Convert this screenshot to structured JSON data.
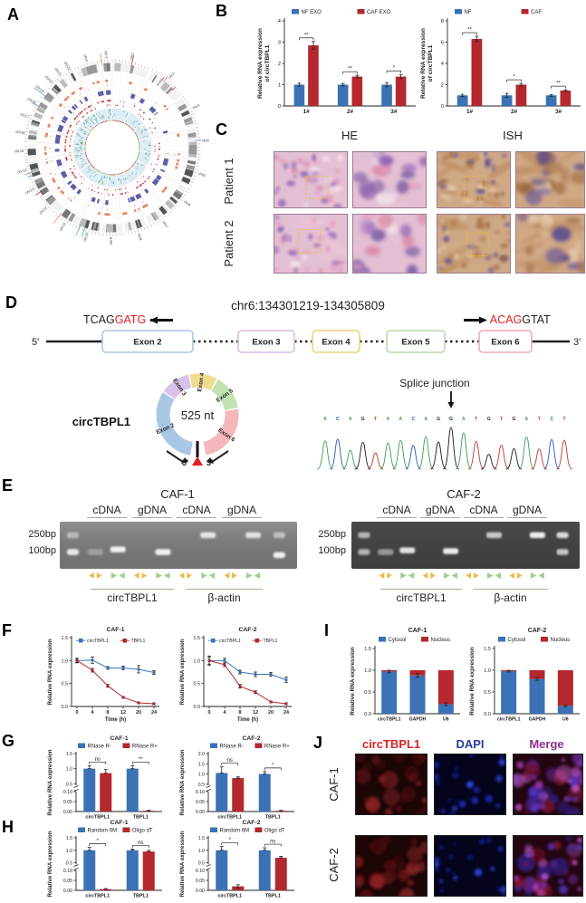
{
  "panel_labels": {
    "A": "A",
    "B": "B",
    "C": "C",
    "D": "D",
    "E": "E",
    "F": "F",
    "G": "G",
    "H": "H",
    "I": "I",
    "J": "J"
  },
  "colors": {
    "series_blue": "#3a72b5",
    "series_red": "#b4282e",
    "accent_red": "#e02020",
    "j_red": "#d42525",
    "j_blue": "#2b3a9e",
    "j_purple": "#8b2f8f",
    "primer_divergent": "#f0b84a",
    "primer_convergent": "#9ed08a"
  },
  "panelA": {
    "chromosomes": [
      {
        "name": "chr1",
        "size": 248
      },
      {
        "name": "chr2",
        "size": 242
      },
      {
        "name": "chr3",
        "size": 198
      },
      {
        "name": "chr4",
        "size": 190
      },
      {
        "name": "chr5",
        "size": 181
      },
      {
        "name": "chr6",
        "size": 171
      },
      {
        "name": "chr7",
        "size": 159
      },
      {
        "name": "chr8",
        "size": 145
      },
      {
        "name": "chr9",
        "size": 138
      },
      {
        "name": "chr10",
        "size": 134
      },
      {
        "name": "chr11",
        "size": 135
      },
      {
        "name": "chr12",
        "size": 133
      },
      {
        "name": "chr13",
        "size": 114
      },
      {
        "name": "chr14",
        "size": 107
      },
      {
        "name": "chr15",
        "size": 102
      },
      {
        "name": "chr16",
        "size": 90
      },
      {
        "name": "chr17",
        "size": 83
      },
      {
        "name": "chr18",
        "size": 80
      },
      {
        "name": "chr19",
        "size": 59
      },
      {
        "name": "chr20",
        "size": 64
      },
      {
        "name": "chr21",
        "size": 47
      },
      {
        "name": "chr22",
        "size": 51
      },
      {
        "name": "chrX",
        "size": 155
      },
      {
        "name": "chrY",
        "size": 57
      }
    ],
    "track_colors": {
      "orange": "#e8825a",
      "purple": "#5c5fa8",
      "red": "#c23b33",
      "lightblue_band": "#ddedf5",
      "teal": "#2a9d8f",
      "blue": "#4a90c2",
      "green": "#7ab648"
    }
  },
  "chart_data": {
    "b_left": {
      "type": "bar",
      "title": "",
      "ylabel": [
        "Relative RNA expression",
        "of circTBPL1"
      ],
      "categories": [
        "1#",
        "2#",
        "3#"
      ],
      "ylim": [
        0,
        4
      ],
      "yticks": [
        0,
        1,
        2,
        3,
        4
      ],
      "series": [
        {
          "name": "NF EXO",
          "color": "#3a72b5",
          "values": [
            1.0,
            1.0,
            1.0
          ],
          "errors": [
            0.07,
            0.06,
            0.1
          ]
        },
        {
          "name": "CAF EXO",
          "color": "#b4282e",
          "values": [
            2.85,
            1.38,
            1.38
          ],
          "errors": [
            0.18,
            0.06,
            0.1
          ]
        }
      ],
      "sig": [
        "**",
        "**",
        "*"
      ]
    },
    "b_right": {
      "type": "bar",
      "title": "",
      "ylabel": [
        "Relative RNA expression",
        "of circTBPL1"
      ],
      "categories": [
        "1#",
        "2#",
        "3#"
      ],
      "ylim": [
        0,
        8
      ],
      "yticks": [
        0,
        2,
        4,
        6,
        8
      ],
      "series": [
        {
          "name": "NF",
          "color": "#3a72b5",
          "values": [
            1.0,
            1.0,
            1.0
          ],
          "errors": [
            0.1,
            0.18,
            0.08
          ]
        },
        {
          "name": "CAF",
          "color": "#b4282e",
          "values": [
            6.3,
            2.0,
            1.45
          ],
          "errors": [
            0.25,
            0.12,
            0.07
          ]
        }
      ],
      "sig": [
        "**",
        "*",
        "**"
      ]
    },
    "f_caf1": {
      "type": "line",
      "title": "CAF-1",
      "ylabel": [
        "Relative RNA expression"
      ],
      "xlabel": "Time (h)",
      "x": [
        "0",
        "4",
        "8",
        "12",
        "20",
        "24"
      ],
      "ylim": [
        0,
        1.5
      ],
      "yticks": [
        0,
        0.5,
        1.0,
        1.5
      ],
      "series": [
        {
          "name": "circTBPL1",
          "color": "#3a72b5",
          "values": [
            1.0,
            1.01,
            0.84,
            0.84,
            0.81,
            0.74
          ],
          "errors": [
            0.04,
            0.07,
            0.03,
            0.04,
            0.08,
            0.04
          ]
        },
        {
          "name": "TBPL1",
          "color": "#b4282e",
          "values": [
            1.0,
            0.79,
            0.45,
            0.2,
            0.08,
            0.06
          ],
          "errors": [
            0.05,
            0.04,
            0.03,
            0.02,
            0.02,
            0.02
          ]
        }
      ]
    },
    "f_caf2": {
      "type": "line",
      "title": "CAF-2",
      "ylabel": [
        "Relative RNA expression"
      ],
      "xlabel": "Time (h)",
      "x": [
        "0",
        "4",
        "8",
        "12",
        "20",
        "24"
      ],
      "ylim": [
        0,
        1.5
      ],
      "yticks": [
        0,
        0.5,
        1.0,
        1.5
      ],
      "series": [
        {
          "name": "circTBPL1",
          "color": "#3a72b5",
          "values": [
            1.0,
            1.0,
            0.75,
            0.7,
            0.7,
            0.58
          ],
          "errors": [
            0.1,
            0.05,
            0.04,
            0.05,
            0.04,
            0.06
          ]
        },
        {
          "name": "TBPL1",
          "color": "#b4282e",
          "values": [
            1.0,
            0.91,
            0.44,
            0.31,
            0.1,
            0.06
          ],
          "errors": [
            0.08,
            0.04,
            0.04,
            0.03,
            0.02,
            0.02
          ]
        }
      ]
    },
    "g_caf1": {
      "type": "broken_bar",
      "title": "CAF-1",
      "ylabel": [
        "Relative RNA expression"
      ],
      "categories": [
        "circTBPL1",
        "TBPL1"
      ],
      "ymax": 1.5,
      "lower_ticks": [
        "0.00",
        "0.05",
        "0.10"
      ],
      "upper_ticks": [
        0.5,
        1.0,
        1.5
      ],
      "series": [
        {
          "name": "RNase R-",
          "color": "#3a72b5",
          "values": [
            1.0,
            1.0
          ],
          "errors": [
            0.1,
            0.1
          ]
        },
        {
          "name": "RNase R+",
          "color": "#b4282e",
          "values": [
            0.85,
            0.004
          ],
          "errors": [
            0.12,
            0.002
          ]
        }
      ],
      "sig": [
        "ns",
        "**"
      ]
    },
    "g_caf2": {
      "type": "broken_bar",
      "title": "CAF-2",
      "ylabel": [
        "Relative RNA expression"
      ],
      "categories": [
        "circTBPL1",
        "TBPL1"
      ],
      "ymax": 2.0,
      "lower_ticks": [
        "0.00",
        "0.05",
        "0.10"
      ],
      "upper_ticks": [
        0.5,
        1.0,
        1.5,
        2.0
      ],
      "series": [
        {
          "name": "RNase R-",
          "color": "#3a72b5",
          "values": [
            1.05,
            1.0
          ],
          "errors": [
            0.3,
            0.12
          ]
        },
        {
          "name": "RNase R+",
          "color": "#b4282e",
          "values": [
            0.8,
            0.004
          ],
          "errors": [
            0.06,
            0.002
          ]
        }
      ],
      "sig": [
        "ns",
        "*"
      ]
    },
    "h_caf1": {
      "type": "broken_bar",
      "title": "CAF-1",
      "ylabel": [
        "Relative RNA expression"
      ],
      "categories": [
        "circTBPL1",
        "TBPL1"
      ],
      "ymax": 1.5,
      "lower_ticks": [
        "0.00",
        "0.05",
        "0.10"
      ],
      "upper_ticks": [
        0.5,
        1.0,
        1.5
      ],
      "series": [
        {
          "name": "Random 6M",
          "color": "#3a72b5",
          "values": [
            1.0,
            1.0
          ],
          "errors": [
            0.12,
            0.05
          ]
        },
        {
          "name": "Oligo dT",
          "color": "#b4282e",
          "values": [
            0.006,
            0.95
          ],
          "errors": [
            0.003,
            0.05
          ]
        }
      ],
      "sig": [
        "*",
        "ns"
      ]
    },
    "h_caf2": {
      "type": "broken_bar",
      "title": "CAF-2",
      "ylabel": [
        "Relative RNA expression"
      ],
      "categories": [
        "circTBPL1",
        "TBPL1"
      ],
      "ymax": 1.5,
      "lower_ticks": [
        "0.00",
        "0.05",
        "0.10"
      ],
      "upper_ticks": [
        0.5,
        1.0,
        1.5
      ],
      "series": [
        {
          "name": "Random 6M",
          "color": "#3a72b5",
          "values": [
            1.0,
            1.0
          ],
          "errors": [
            0.15,
            0.1
          ]
        },
        {
          "name": "Oligo dT",
          "color": "#b4282e",
          "values": [
            0.02,
            0.7
          ],
          "errors": [
            0.008,
            0.06
          ]
        }
      ],
      "sig": [
        "*",
        "ns"
      ]
    },
    "i_caf1": {
      "type": "stacked_bar",
      "title": "CAF-1",
      "ylabel": [
        "Relative RNA expression"
      ],
      "categories": [
        "circTBPL1",
        "GAPDH",
        "U6"
      ],
      "ylim": [
        0,
        1.5
      ],
      "yticks": [
        0,
        0.5,
        1.0,
        1.5
      ],
      "series": [
        {
          "name": "Cytosol",
          "color": "#3a72b5",
          "values": [
            0.97,
            0.88,
            0.22
          ],
          "errors": [
            0.03,
            0.04,
            0.03
          ]
        },
        {
          "name": "Nucleus",
          "color": "#b4282e",
          "values": [
            0.03,
            0.12,
            0.78
          ],
          "errors": [
            0.02,
            0.02,
            0.02
          ]
        }
      ]
    },
    "i_caf2": {
      "type": "stacked_bar",
      "title": "CAF-2",
      "ylabel": [
        "Relative RNA expression"
      ],
      "categories": [
        "circTBPL1",
        "GAPDH",
        "U6"
      ],
      "ylim": [
        0,
        1.5
      ],
      "yticks": [
        0,
        0.5,
        1.0,
        1.5
      ],
      "series": [
        {
          "name": "Cytosol",
          "color": "#3a72b5",
          "values": [
            0.98,
            0.8,
            0.18
          ],
          "errors": [
            0.02,
            0.03,
            0.02
          ]
        },
        {
          "name": "Nucleus",
          "color": "#b4282e",
          "values": [
            0.02,
            0.2,
            0.82
          ],
          "errors": [
            0.02,
            0.02,
            0.02
          ]
        }
      ]
    }
  },
  "panelC": {
    "col_headers": [
      "HE",
      "ISH"
    ],
    "row_labels": [
      "Patient 1",
      "Patient 2"
    ]
  },
  "panelD": {
    "locus": "chr6:134301219-134305809",
    "left_primer": {
      "black": "TCAG",
      "red": "GATG"
    },
    "right_primer": {
      "red": "ACAG",
      "black": "GTAT"
    },
    "five_prime": "5'",
    "three_prime": "3'",
    "exons": [
      {
        "label": "Exon 2",
        "border": "#a9c6e4"
      },
      {
        "label": "Exon 3",
        "border": "#d5bce6"
      },
      {
        "label": "Exon 4",
        "border": "#ecd27a"
      },
      {
        "label": "Exon 5",
        "border": "#b9dcab"
      },
      {
        "label": "Exon 6",
        "border": "#f2aab4"
      }
    ],
    "circle": {
      "name": "circTBPL1",
      "size_label": "525 nt",
      "five": "5'",
      "three": "3'",
      "segments": [
        {
          "label": "Exon 2",
          "color": "#a9c6e4",
          "from": 190,
          "to": 303
        },
        {
          "label": "Exon 3",
          "color": "#d8c2ea",
          "from": 305,
          "to": 347
        },
        {
          "label": "Exon 4",
          "color": "#f0dc8e",
          "from": 349,
          "to": 388
        },
        {
          "label": "Exon 5",
          "color": "#c3e2b2",
          "from": 390,
          "to": 440
        },
        {
          "label": "Exon 6",
          "color": "#f4b8bc",
          "from": 442,
          "to": 528
        }
      ]
    },
    "splice": {
      "label": "Splice junction",
      "sequence": "ACAGTAACAGGATGTGATCT",
      "base_colors": {
        "A": "#3a9e4f",
        "C": "#2a59b5",
        "G": "#1a1a1a",
        "T": "#c0392b"
      }
    }
  },
  "panelE": {
    "gels": [
      {
        "title": "CAF-1",
        "lane_headers": [
          "cDNA",
          "gDNA",
          "cDNA",
          "gDNA"
        ],
        "size_labels": [
          "250bp",
          "100bp"
        ],
        "primer_groups": [
          "circTBPL1",
          "β-actin"
        ],
        "bg": "#8f8f8f",
        "bands": [
          {
            "lane": 0,
            "bp": 250,
            "i": 0.45
          },
          {
            "lane": 0,
            "bp": 100,
            "i": 0.85
          },
          {
            "lane": 1,
            "bp": 100,
            "i": 0.3
          },
          {
            "lane": 2,
            "bp": 115,
            "i": 0.9
          },
          {
            "lane": 4,
            "bp": 100,
            "i": 0.9
          },
          {
            "lane": 6,
            "bp": 250,
            "i": 0.8
          },
          {
            "lane": 8,
            "bp": 250,
            "i": 0.75
          },
          {
            "lane": 9,
            "bp": 250,
            "i": 0.5
          },
          {
            "lane": 9,
            "bp": 85,
            "i": 0.9
          }
        ]
      },
      {
        "title": "CAF-2",
        "lane_headers": [
          "cDNA",
          "gDNA",
          "cDNA",
          "gDNA"
        ],
        "size_labels": [
          "250bp",
          "100bp"
        ],
        "primer_groups": [
          "circTBPL1",
          "β-actin"
        ],
        "bg": "#4a4a4a",
        "bands": [
          {
            "lane": 0,
            "bp": 250,
            "i": 0.6
          },
          {
            "lane": 0,
            "bp": 100,
            "i": 0.6
          },
          {
            "lane": 1,
            "bp": 100,
            "i": 0.45
          },
          {
            "lane": 2,
            "bp": 110,
            "i": 0.85
          },
          {
            "lane": 4,
            "bp": 105,
            "i": 0.9
          },
          {
            "lane": 6,
            "bp": 250,
            "i": 0.7
          },
          {
            "lane": 8,
            "bp": 250,
            "i": 0.9
          },
          {
            "lane": 9,
            "bp": 250,
            "i": 0.8
          },
          {
            "lane": 9,
            "bp": 100,
            "i": 0.7
          }
        ]
      }
    ]
  },
  "panelJ": {
    "col_headers": [
      {
        "label": "circTBPL1",
        "color": "#d42525"
      },
      {
        "label": "DAPI",
        "color": "#2b3a9e"
      },
      {
        "label": "Merge",
        "color": "#8b2f8f"
      }
    ],
    "row_labels": [
      "CAF-1",
      "CAF-2"
    ]
  },
  "micro_palettes": {
    "he": {
      "base": "#e3bfd4",
      "blobs": [
        "#6f4f9e",
        "#8a5fae",
        "#a678be",
        "#e39ec0",
        "#f6e3ec",
        "#d98aa8"
      ],
      "streak": "#eac3d4"
    },
    "ish": {
      "base": "#cfa886",
      "blobs": [
        "#8a5a33",
        "#a97648",
        "#6f5a9e",
        "#e6cdae",
        "#5a4a8e"
      ],
      "streak": "#c09065"
    },
    "red": {
      "base": "#1c0606",
      "blobs": [
        "#6e0f12",
        "#952025",
        "#4a0a0c",
        "#b03035"
      ]
    },
    "dapi": {
      "base": "#04041c",
      "blobs": [
        "#1b2bb8",
        "#3347e0",
        "#0f1a78"
      ]
    },
    "merge": {
      "base": "#230612",
      "blobs": [
        "#7a1025",
        "#a02040",
        "#c05ac8",
        "#8438d0",
        "#3b2bb8"
      ]
    }
  }
}
